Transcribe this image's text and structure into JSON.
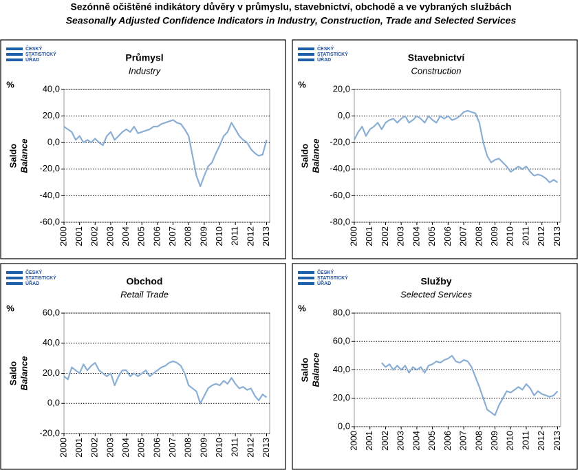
{
  "header": {
    "title": "Sezónně očištěné indikátory důvěry v průmyslu, stavebnictví, obchodě a ve vybraných službách",
    "subtitle": "Seasonally Adjusted Confidence Indicators in Industry, Construction, Trade and Selected Services"
  },
  "logo": [
    "ČESKÝ",
    "STATISTICKÝ",
    "ÚŘAD"
  ],
  "chart_data": [
    {
      "type": "line",
      "title": "Průmysl",
      "subtitle": "Industry",
      "unit": "%",
      "ylabel": "Saldo",
      "ylabel_en": "Balance",
      "x": [
        2000,
        2000.25,
        2000.5,
        2000.75,
        2001,
        2001.25,
        2001.5,
        2001.75,
        2002,
        2002.25,
        2002.5,
        2002.75,
        2003,
        2003.25,
        2003.5,
        2003.75,
        2004,
        2004.25,
        2004.5,
        2004.75,
        2005,
        2005.25,
        2005.5,
        2005.75,
        2006,
        2006.25,
        2006.5,
        2006.75,
        2007,
        2007.25,
        2007.5,
        2007.75,
        2008,
        2008.25,
        2008.5,
        2008.75,
        2009,
        2009.25,
        2009.5,
        2009.75,
        2010,
        2010.25,
        2010.5,
        2010.75,
        2011,
        2011.25,
        2011.5,
        2011.75,
        2012,
        2012.25,
        2012.5,
        2012.75,
        2013
      ],
      "series": [
        {
          "color": "#8aaed4",
          "values": [
            12,
            10,
            8,
            2,
            5,
            0,
            2,
            0,
            3,
            0,
            -2,
            5,
            8,
            2,
            5,
            8,
            10,
            8,
            12,
            7,
            8,
            9,
            10,
            12,
            12,
            14,
            15,
            16,
            17,
            15,
            14,
            10,
            5,
            -10,
            -25,
            -33,
            -25,
            -18,
            -15,
            -8,
            -2,
            5,
            8,
            15,
            10,
            5,
            2,
            0,
            -5,
            -8,
            -10,
            -9,
            2
          ]
        }
      ],
      "xlim": [
        2000,
        2013.2
      ],
      "xticks": [
        2000,
        2001,
        2002,
        2003,
        2004,
        2005,
        2006,
        2007,
        2008,
        2009,
        2010,
        2011,
        2012,
        2013
      ],
      "ylim": [
        -60,
        40
      ],
      "yticks": [
        {
          "value": -60,
          "label": "-60,0"
        },
        {
          "value": -40,
          "label": "-40,0"
        },
        {
          "value": -20,
          "label": "-20,0"
        },
        {
          "value": 0,
          "label": "0,0"
        },
        {
          "value": 20,
          "label": "20,0"
        },
        {
          "value": 40,
          "label": "40,0"
        }
      ],
      "grid": true
    },
    {
      "type": "line",
      "title": "Stavebnictví",
      "subtitle": "Construction",
      "unit": "%",
      "ylabel": "Saldo",
      "ylabel_en": "Balance",
      "x": [
        2000,
        2000.25,
        2000.5,
        2000.75,
        2001,
        2001.25,
        2001.5,
        2001.75,
        2002,
        2002.25,
        2002.5,
        2002.75,
        2003,
        2003.25,
        2003.5,
        2003.75,
        2004,
        2004.25,
        2004.5,
        2004.75,
        2005,
        2005.25,
        2005.5,
        2005.75,
        2006,
        2006.25,
        2006.5,
        2006.75,
        2007,
        2007.25,
        2007.5,
        2007.75,
        2008,
        2008.25,
        2008.5,
        2008.75,
        2009,
        2009.25,
        2009.5,
        2009.75,
        2010,
        2010.25,
        2010.5,
        2010.75,
        2011,
        2011.25,
        2011.5,
        2011.75,
        2012,
        2012.25,
        2012.5,
        2012.75,
        2013
      ],
      "series": [
        {
          "color": "#8aaed4",
          "values": [
            -18,
            -12,
            -8,
            -15,
            -10,
            -8,
            -5,
            -10,
            -5,
            -3,
            -2,
            -5,
            -2,
            0,
            -5,
            -3,
            0,
            -2,
            -5,
            0,
            -3,
            -5,
            0,
            -2,
            0,
            -3,
            -2,
            0,
            3,
            4,
            3,
            2,
            -5,
            -20,
            -30,
            -35,
            -33,
            -32,
            -35,
            -38,
            -42,
            -40,
            -38,
            -40,
            -38,
            -42,
            -45,
            -44,
            -45,
            -47,
            -50,
            -48,
            -50
          ]
        }
      ],
      "xlim": [
        2000,
        2013.2
      ],
      "xticks": [
        2000,
        2001,
        2002,
        2003,
        2004,
        2005,
        2006,
        2007,
        2008,
        2009,
        2010,
        2011,
        2012,
        2013
      ],
      "ylim": [
        -80,
        20
      ],
      "yticks": [
        {
          "value": -80,
          "label": "-80,0"
        },
        {
          "value": -60,
          "label": "-60,0"
        },
        {
          "value": -40,
          "label": "-40,0"
        },
        {
          "value": -20,
          "label": "-20,0"
        },
        {
          "value": 0,
          "label": "0,0"
        },
        {
          "value": 20,
          "label": "20,0"
        }
      ],
      "grid": true
    },
    {
      "type": "line",
      "title": "Obchod",
      "subtitle": "Retail Trade",
      "unit": "%",
      "ylabel": "Saldo",
      "ylabel_en": "Balance",
      "x": [
        2000,
        2000.25,
        2000.5,
        2000.75,
        2001,
        2001.25,
        2001.5,
        2001.75,
        2002,
        2002.25,
        2002.5,
        2002.75,
        2003,
        2003.25,
        2003.5,
        2003.75,
        2004,
        2004.25,
        2004.5,
        2004.75,
        2005,
        2005.25,
        2005.5,
        2005.75,
        2006,
        2006.25,
        2006.5,
        2006.75,
        2007,
        2007.25,
        2007.5,
        2007.75,
        2008,
        2008.25,
        2008.5,
        2008.75,
        2009,
        2009.25,
        2009.5,
        2009.75,
        2010,
        2010.25,
        2010.5,
        2010.75,
        2011,
        2011.25,
        2011.5,
        2011.75,
        2012,
        2012.25,
        2012.5,
        2012.75,
        2013
      ],
      "series": [
        {
          "color": "#8aaed4",
          "values": [
            18,
            16,
            24,
            22,
            20,
            26,
            22,
            25,
            27,
            22,
            20,
            18,
            20,
            12,
            18,
            22,
            22,
            18,
            20,
            18,
            20,
            22,
            18,
            20,
            22,
            24,
            25,
            27,
            28,
            27,
            25,
            20,
            12,
            10,
            8,
            0,
            5,
            10,
            12,
            13,
            12,
            15,
            13,
            17,
            13,
            10,
            11,
            9,
            10,
            5,
            2,
            6,
            4
          ]
        }
      ],
      "xlim": [
        2000,
        2013.2
      ],
      "xticks": [
        2000,
        2001,
        2002,
        2003,
        2004,
        2005,
        2006,
        2007,
        2008,
        2009,
        2010,
        2011,
        2012,
        2013
      ],
      "ylim": [
        -20,
        60
      ],
      "yticks": [
        {
          "value": -20,
          "label": "-20,0"
        },
        {
          "value": 0,
          "label": "0,0"
        },
        {
          "value": 20,
          "label": "20,0"
        },
        {
          "value": 40,
          "label": "40,0"
        },
        {
          "value": 60,
          "label": "60,0"
        }
      ],
      "grid": true
    },
    {
      "type": "line",
      "title": "Služby",
      "subtitle": "Selected Services",
      "unit": "%",
      "ylabel": "Saldo",
      "ylabel_en": "Balance",
      "x": [
        2001.75,
        2002,
        2002.25,
        2002.5,
        2002.75,
        2003,
        2003.25,
        2003.5,
        2003.75,
        2004,
        2004.25,
        2004.5,
        2004.75,
        2005,
        2005.25,
        2005.5,
        2005.75,
        2006,
        2006.25,
        2006.5,
        2006.75,
        2007,
        2007.25,
        2007.5,
        2007.75,
        2008,
        2008.25,
        2008.5,
        2008.75,
        2009,
        2009.25,
        2009.5,
        2009.75,
        2010,
        2010.25,
        2010.5,
        2010.75,
        2011,
        2011.25,
        2011.5,
        2011.75,
        2012,
        2012.25,
        2012.5,
        2012.75,
        2013
      ],
      "series": [
        {
          "color": "#8aaed4",
          "values": [
            45,
            42,
            44,
            40,
            43,
            40,
            43,
            38,
            42,
            40,
            42,
            38,
            43,
            44,
            46,
            45,
            47,
            48,
            50,
            46,
            45,
            47,
            46,
            42,
            35,
            28,
            20,
            12,
            10,
            8,
            15,
            20,
            25,
            24,
            26,
            28,
            26,
            30,
            27,
            22,
            25,
            23,
            22,
            21,
            22,
            25
          ]
        }
      ],
      "xlim": [
        2000,
        2013.2
      ],
      "xticks": [
        2000,
        2001,
        2002,
        2003,
        2004,
        2005,
        2006,
        2007,
        2008,
        2009,
        2010,
        2011,
        2012,
        2013
      ],
      "ylim": [
        0,
        80
      ],
      "yticks": [
        {
          "value": 0,
          "label": "0,0"
        },
        {
          "value": 20,
          "label": "20,0"
        },
        {
          "value": 40,
          "label": "40,0"
        },
        {
          "value": 60,
          "label": "60,0"
        },
        {
          "value": 80,
          "label": "80,0"
        }
      ],
      "grid": true
    }
  ]
}
